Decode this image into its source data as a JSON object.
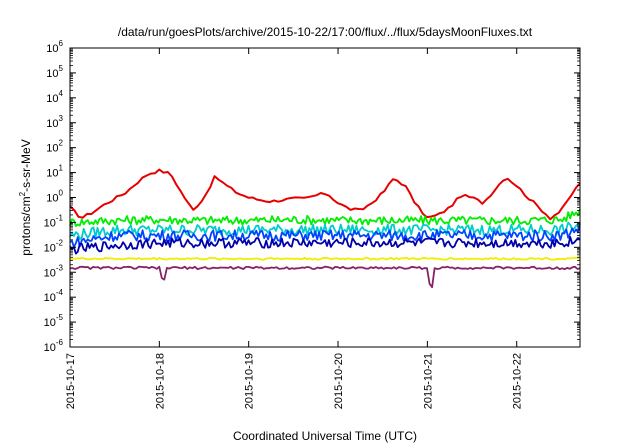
{
  "chart_data": {
    "type": "line",
    "title": "/data/run/goesPlots/archive/2015-10-22/17:00/flux/../flux/5daysMoonFluxes.txt",
    "xlabel": "Coordinated Universal Time (UTC)",
    "ylabel": "protons/cm2-s-sr-MeV",
    "y_scale": "log",
    "ylim": [
      1e-06,
      1000000
    ],
    "y_ticks": [
      {
        "exp": -6,
        "text": "10",
        "sup": "-6"
      },
      {
        "exp": -5,
        "text": "10",
        "sup": "-5"
      },
      {
        "exp": -4,
        "text": "10",
        "sup": "-4"
      },
      {
        "exp": -3,
        "text": "10",
        "sup": "-3"
      },
      {
        "exp": -2,
        "text": "10",
        "sup": "-2"
      },
      {
        "exp": -1,
        "text": "10",
        "sup": "-1"
      },
      {
        "exp": 0,
        "text": "10",
        "sup": "0"
      },
      {
        "exp": 1,
        "text": "10",
        "sup": "1"
      },
      {
        "exp": 2,
        "text": "10",
        "sup": "2"
      },
      {
        "exp": 3,
        "text": "10",
        "sup": "3"
      },
      {
        "exp": 4,
        "text": "10",
        "sup": "4"
      },
      {
        "exp": 5,
        "text": "10",
        "sup": "5"
      },
      {
        "exp": 6,
        "text": "10",
        "sup": "6"
      }
    ],
    "xlim": [
      "2015-10-17T00:00",
      "2015-10-22T17:00"
    ],
    "x_ticks": [
      "2015-10-17",
      "2015-10-18",
      "2015-10-19",
      "2015-10-20",
      "2015-10-21",
      "2015-10-22"
    ],
    "grid": false,
    "series": [
      {
        "color": "#e60000",
        "x": [
          "2015-10-17T00:00",
          "2015-10-17T03:00",
          "2015-10-17T06:00",
          "2015-10-17T09:00",
          "2015-10-17T12:00",
          "2015-10-17T15:00",
          "2015-10-17T18:00",
          "2015-10-17T21:00",
          "2015-10-18T00:00",
          "2015-10-18T03:00",
          "2015-10-18T06:00",
          "2015-10-18T09:00",
          "2015-10-18T12:00",
          "2015-10-18T15:00",
          "2015-10-18T18:00",
          "2015-10-18T21:00",
          "2015-10-19T00:00",
          "2015-10-19T03:00",
          "2015-10-19T06:00",
          "2015-10-19T09:00",
          "2015-10-19T12:00",
          "2015-10-19T15:00",
          "2015-10-19T18:00",
          "2015-10-19T21:00",
          "2015-10-20T00:00",
          "2015-10-20T03:00",
          "2015-10-20T06:00",
          "2015-10-20T09:00",
          "2015-10-20T12:00",
          "2015-10-20T15:00",
          "2015-10-20T18:00",
          "2015-10-20T21:00",
          "2015-10-21T00:00",
          "2015-10-21T03:00",
          "2015-10-21T06:00",
          "2015-10-21T09:00",
          "2015-10-21T12:00",
          "2015-10-21T15:00",
          "2015-10-21T18:00",
          "2015-10-21T21:00",
          "2015-10-22T00:00",
          "2015-10-22T03:00",
          "2015-10-22T06:00",
          "2015-10-22T09:00",
          "2015-10-22T12:00",
          "2015-10-22T15:00",
          "2015-10-22T17:00"
        ],
        "y": [
          0.4,
          0.15,
          0.25,
          0.5,
          0.9,
          1.6,
          4,
          9,
          12,
          9,
          1.5,
          0.3,
          1,
          7,
          3,
          1.5,
          1,
          0.8,
          0.7,
          0.8,
          0.9,
          0.9,
          1.2,
          1.5,
          0.6,
          0.35,
          0.3,
          0.6,
          1.5,
          6,
          3,
          0.5,
          0.15,
          0.2,
          0.4,
          1.2,
          1,
          0.6,
          2,
          7,
          3,
          1,
          0.4,
          0.15,
          0.3,
          1.5,
          4
        ]
      },
      {
        "color": "#00ee00",
        "x": [
          "2015-10-17T00:00",
          "2015-10-17T12:00",
          "2015-10-18T00:00",
          "2015-10-18T12:00",
          "2015-10-19T00:00",
          "2015-10-19T12:00",
          "2015-10-20T00:00",
          "2015-10-20T12:00",
          "2015-10-21T00:00",
          "2015-10-21T12:00",
          "2015-10-22T00:00",
          "2015-10-22T12:00",
          "2015-10-22T17:00"
        ],
        "y": [
          0.1,
          0.12,
          0.13,
          0.12,
          0.12,
          0.13,
          0.12,
          0.12,
          0.12,
          0.12,
          0.12,
          0.13,
          0.3
        ]
      },
      {
        "color": "#00cccc",
        "x": [
          "2015-10-17T00:00",
          "2015-10-17T12:00",
          "2015-10-18T00:00",
          "2015-10-18T12:00",
          "2015-10-19T00:00",
          "2015-10-19T12:00",
          "2015-10-20T00:00",
          "2015-10-20T12:00",
          "2015-10-21T00:00",
          "2015-10-21T12:00",
          "2015-10-22T00:00",
          "2015-10-22T12:00",
          "2015-10-22T17:00"
        ],
        "y": [
          0.03,
          0.05,
          0.05,
          0.05,
          0.05,
          0.05,
          0.05,
          0.05,
          0.05,
          0.05,
          0.05,
          0.05,
          0.08
        ]
      },
      {
        "color": "#0044ff",
        "x": [
          "2015-10-17T00:00",
          "2015-10-17T12:00",
          "2015-10-18T00:00",
          "2015-10-18T12:00",
          "2015-10-19T00:00",
          "2015-10-19T12:00",
          "2015-10-20T00:00",
          "2015-10-20T12:00",
          "2015-10-21T00:00",
          "2015-10-21T12:00",
          "2015-10-22T00:00",
          "2015-10-22T12:00",
          "2015-10-22T17:00"
        ],
        "y": [
          0.015,
          0.03,
          0.03,
          0.03,
          0.03,
          0.03,
          0.03,
          0.03,
          0.03,
          0.03,
          0.03,
          0.03,
          0.06
        ]
      },
      {
        "color": "#0000aa",
        "x": [
          "2015-10-17T00:00",
          "2015-10-17T12:00",
          "2015-10-18T00:00",
          "2015-10-18T12:00",
          "2015-10-19T00:00",
          "2015-10-19T12:00",
          "2015-10-20T00:00",
          "2015-10-20T12:00",
          "2015-10-21T00:00",
          "2015-10-21T12:00",
          "2015-10-22T00:00",
          "2015-10-22T12:00",
          "2015-10-22T17:00"
        ],
        "y": [
          0.008,
          0.012,
          0.015,
          0.015,
          0.015,
          0.015,
          0.015,
          0.015,
          0.015,
          0.015,
          0.015,
          0.015,
          0.02
        ]
      },
      {
        "color": "#eeee00",
        "x": [
          "2015-10-17T00:00",
          "2015-10-17T12:00",
          "2015-10-18T00:00",
          "2015-10-18T12:00",
          "2015-10-19T00:00",
          "2015-10-19T12:00",
          "2015-10-20T00:00",
          "2015-10-20T12:00",
          "2015-10-21T00:00",
          "2015-10-21T12:00",
          "2015-10-22T00:00",
          "2015-10-22T12:00",
          "2015-10-22T17:00"
        ],
        "y": [
          0.0035,
          0.0035,
          0.0035,
          0.0035,
          0.0035,
          0.0035,
          0.0035,
          0.0035,
          0.0035,
          0.0035,
          0.0035,
          0.0035,
          0.0035
        ]
      },
      {
        "color": "#882266",
        "x": [
          "2015-10-17T00:00",
          "2015-10-17T12:00",
          "2015-10-18T00:00",
          "2015-10-18T01:00",
          "2015-10-18T02:00",
          "2015-10-18T12:00",
          "2015-10-19T00:00",
          "2015-10-19T12:00",
          "2015-10-20T00:00",
          "2015-10-20T12:00",
          "2015-10-21T00:00",
          "2015-10-21T01:00",
          "2015-10-21T02:00",
          "2015-10-21T12:00",
          "2015-10-22T00:00",
          "2015-10-22T12:00",
          "2015-10-22T17:00"
        ],
        "y": [
          0.0015,
          0.0015,
          0.0015,
          0.0003,
          0.0015,
          0.0015,
          0.0015,
          0.0015,
          0.0015,
          0.0015,
          0.0015,
          0.00013,
          0.0015,
          0.0015,
          0.0015,
          0.0015,
          0.0015
        ]
      }
    ]
  }
}
